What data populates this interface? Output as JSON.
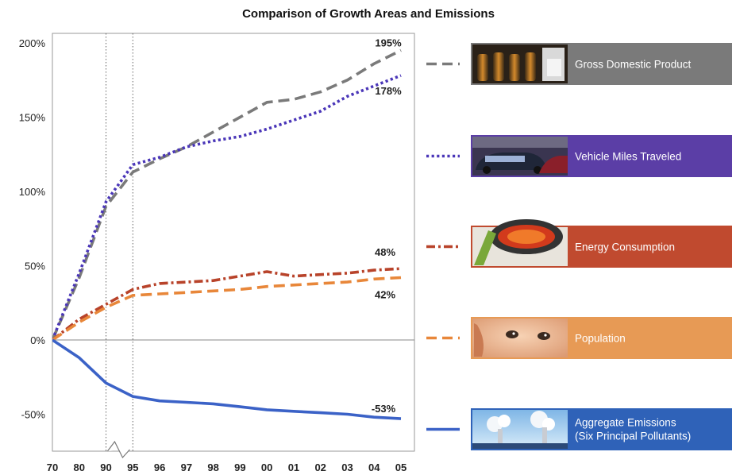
{
  "chart_data": {
    "type": "line",
    "title": "Comparison of Growth Areas and Emissions",
    "xlabel": "",
    "ylabel": "",
    "x": [
      "70",
      "80",
      "90",
      "95",
      "96",
      "97",
      "98",
      "99",
      "00",
      "01",
      "02",
      "03",
      "04",
      "05"
    ],
    "y_ticks": [
      "200%",
      "150%",
      "100%",
      "50%",
      "0%",
      "-50%"
    ],
    "ylim": [
      -75,
      200
    ],
    "grid": false,
    "axis_break_between": [
      "90",
      "95"
    ],
    "legend_position": "right",
    "series": [
      {
        "name": "Gross Domestic Product",
        "values": [
          0,
          42,
          90,
          113,
          122,
          130,
          140,
          150,
          160,
          162,
          167,
          175,
          186,
          195
        ],
        "end_label": "195%",
        "color": "#7a7a7a",
        "line_style": "dashed",
        "swatch_image": "wine-bottles-photo"
      },
      {
        "name": "Vehicle Miles Traveled",
        "values": [
          0,
          45,
          93,
          118,
          123,
          130,
          134,
          137,
          142,
          148,
          154,
          164,
          171,
          178
        ],
        "end_label": "178%",
        "color": "#4a36b8",
        "line_style": "dotted",
        "swatch_image": "cars-photo"
      },
      {
        "name": "Energy Consumption",
        "values": [
          0,
          14,
          24,
          34,
          38,
          39,
          40,
          43,
          46,
          43,
          44,
          45,
          47,
          48
        ],
        "end_label": "48%",
        "color": "#b8432a",
        "line_style": "dash-dot",
        "swatch_image": "stove-burner-photo"
      },
      {
        "name": "Population",
        "values": [
          0,
          12,
          22,
          30,
          31,
          32,
          33,
          34,
          36,
          37,
          38,
          39,
          41,
          42
        ],
        "end_label": "42%",
        "color": "#e8873a",
        "line_style": "dashed",
        "swatch_image": "baby-face-photo"
      },
      {
        "name": "Aggregate Emissions (Six Principal Pollutants)",
        "name_lines": [
          "Aggregate Emissions",
          "(Six Principal Pollutants)"
        ],
        "values": [
          0,
          -12,
          -29,
          -38,
          -41,
          -42,
          -43,
          -45,
          -47,
          -48,
          -49,
          -50,
          -52,
          -53
        ],
        "end_label": "-53%",
        "color": "#3b62c7",
        "line_style": "solid",
        "swatch_image": "smokestacks-photo"
      }
    ],
    "legend_box_colors": [
      "#7a7a7a",
      "#5b3ea6",
      "#c04a2f",
      "#e79a55",
      "#2f62b8"
    ]
  }
}
